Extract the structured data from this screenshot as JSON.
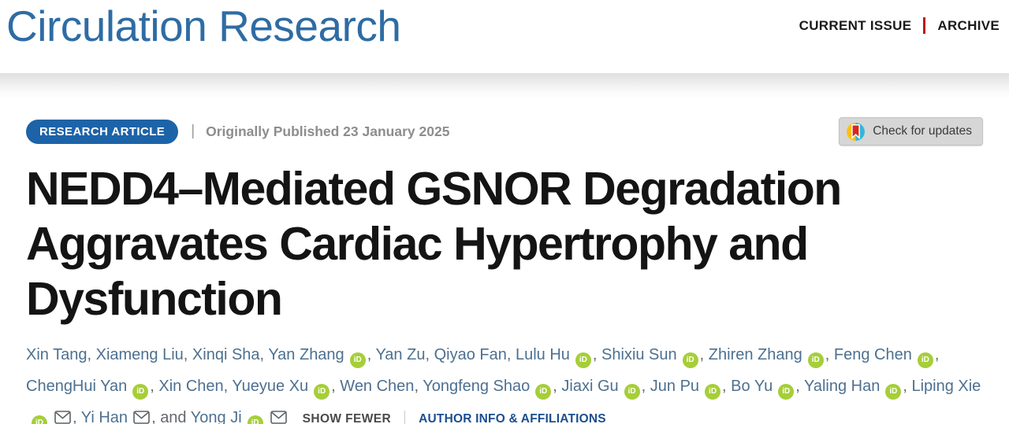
{
  "header": {
    "journal_title": "Circulation Research",
    "nav": {
      "current_issue": "CURRENT ISSUE",
      "archive": "ARCHIVE"
    }
  },
  "article": {
    "badge_label": "RESEARCH ARTICLE",
    "meta_divider": "|",
    "published_text": "Originally Published 23 January 2025",
    "check_for_updates_label": "Check for updates",
    "title": "NEDD4–Mediated GSNOR Degradation Aggravates Cardiac Hypertrophy and Dysfunction",
    "title_lines": [
      "NEDD4–Mediated GSNOR Degradation",
      "Aggravates Cardiac Hypertrophy and",
      "Dysfunction"
    ],
    "orcid_icon_label": "iD",
    "and_label": "and",
    "separator": ", ",
    "authors": [
      {
        "name": "Xin Tang",
        "orcid": false,
        "email": false
      },
      {
        "name": "Xiameng Liu",
        "orcid": false,
        "email": false
      },
      {
        "name": "Xinqi Sha",
        "orcid": false,
        "email": false
      },
      {
        "name": "Yan Zhang",
        "orcid": true,
        "email": false
      },
      {
        "name": "Yan Zu",
        "orcid": false,
        "email": false
      },
      {
        "name": "Qiyao Fan",
        "orcid": false,
        "email": false
      },
      {
        "name": "Lulu Hu",
        "orcid": true,
        "email": false
      },
      {
        "name": "Shixiu Sun",
        "orcid": true,
        "email": false
      },
      {
        "name": "Zhiren Zhang",
        "orcid": true,
        "email": false
      },
      {
        "name": "Feng Chen",
        "orcid": true,
        "email": false
      },
      {
        "name": "ChengHui Yan",
        "orcid": true,
        "email": false
      },
      {
        "name": "Xin Chen",
        "orcid": false,
        "email": false
      },
      {
        "name": "Yueyue Xu",
        "orcid": true,
        "email": false
      },
      {
        "name": "Wen Chen",
        "orcid": false,
        "email": false
      },
      {
        "name": "Yongfeng Shao",
        "orcid": true,
        "email": false
      },
      {
        "name": "Jiaxi Gu",
        "orcid": true,
        "email": false
      },
      {
        "name": "Jun Pu",
        "orcid": true,
        "email": false
      },
      {
        "name": "Bo Yu",
        "orcid": true,
        "email": false
      },
      {
        "name": "Yaling Han",
        "orcid": true,
        "email": false
      },
      {
        "name": "Liping Xie",
        "orcid": true,
        "email": true
      },
      {
        "name": "Yi Han",
        "orcid": false,
        "email": true
      },
      {
        "name": "Yong Ji",
        "orcid": true,
        "email": true
      }
    ],
    "links": {
      "show_fewer": "SHOW FEWER",
      "author_info": "AUTHOR INFO & AFFILIATIONS"
    }
  },
  "colors": {
    "logo_blue": "#2e6ca4",
    "badge_blue": "#1d63a8",
    "nav_divider_red": "#c10e21",
    "author_blue": "#4d7090",
    "orcid_green": "#a6ce39",
    "link_blue": "#1b4e8f",
    "published_gray": "#8d8d8d"
  }
}
